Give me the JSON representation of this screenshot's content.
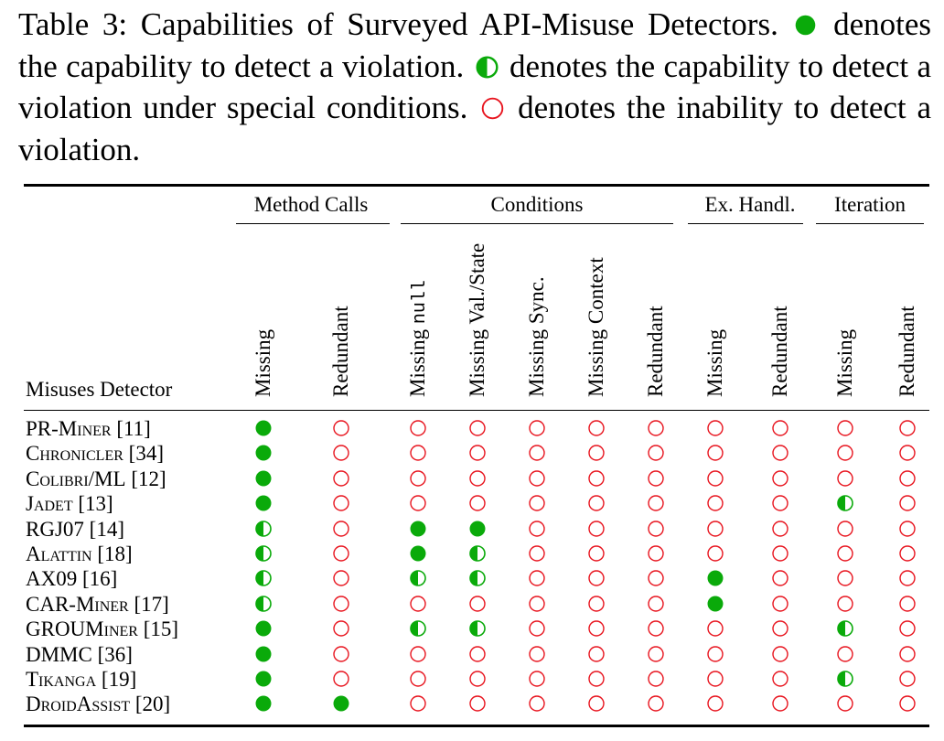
{
  "caption": {
    "prefix": "Table 3: Capabilities of Surveyed API-Misuse Detectors.",
    "full_desc": "denotes the capability to detect a violation.",
    "half_desc": "denotes the capability to detect a violation under special conditions.",
    "empty_desc": "denotes the inability to detect a violation."
  },
  "colors": {
    "full": "#0aaa0a",
    "empty_stroke": "#e8141e"
  },
  "header": {
    "detector_label": "Misuses Detector"
  },
  "groups": [
    {
      "label": "Method Calls"
    },
    {
      "label": "Conditions"
    },
    {
      "label": "Ex. Handl."
    },
    {
      "label": "Iteration"
    }
  ],
  "columns": [
    {
      "label": "Missing"
    },
    {
      "label": "Redundant"
    },
    {
      "label_prefix": "Missing ",
      "label_code": "null"
    },
    {
      "label": "Missing Val./State"
    },
    {
      "label": "Missing Sync."
    },
    {
      "label": "Missing Context"
    },
    {
      "label": "Redundant"
    },
    {
      "label": "Missing"
    },
    {
      "label": "Redundant"
    },
    {
      "label": "Missing"
    },
    {
      "label": "Redundant"
    }
  ],
  "rows": [
    {
      "name": "PR-Miner",
      "ref": "[11]",
      "cells": [
        "full",
        "empty",
        "empty",
        "empty",
        "empty",
        "empty",
        "empty",
        "empty",
        "empty",
        "empty",
        "empty"
      ]
    },
    {
      "name": "Chronicler",
      "ref": "[34]",
      "cells": [
        "full",
        "empty",
        "empty",
        "empty",
        "empty",
        "empty",
        "empty",
        "empty",
        "empty",
        "empty",
        "empty"
      ]
    },
    {
      "name": "Colibri/ML",
      "ref": "[12]",
      "cells": [
        "full",
        "empty",
        "empty",
        "empty",
        "empty",
        "empty",
        "empty",
        "empty",
        "empty",
        "empty",
        "empty"
      ]
    },
    {
      "name": "Jadet",
      "ref": "[13]",
      "cells": [
        "full",
        "empty",
        "empty",
        "empty",
        "empty",
        "empty",
        "empty",
        "empty",
        "empty",
        "half",
        "empty"
      ]
    },
    {
      "name": "RGJ07",
      "ref": "[14]",
      "cells": [
        "half",
        "empty",
        "full",
        "full",
        "empty",
        "empty",
        "empty",
        "empty",
        "empty",
        "empty",
        "empty"
      ]
    },
    {
      "name": "Alattin",
      "ref": "[18]",
      "cells": [
        "half",
        "empty",
        "full",
        "half",
        "empty",
        "empty",
        "empty",
        "empty",
        "empty",
        "empty",
        "empty"
      ]
    },
    {
      "name": "AX09",
      "ref": "[16]",
      "cells": [
        "half",
        "empty",
        "half",
        "half",
        "empty",
        "empty",
        "empty",
        "full",
        "empty",
        "empty",
        "empty"
      ]
    },
    {
      "name": "CAR-Miner",
      "ref": "[17]",
      "cells": [
        "half",
        "empty",
        "empty",
        "empty",
        "empty",
        "empty",
        "empty",
        "full",
        "empty",
        "empty",
        "empty"
      ]
    },
    {
      "name": "GROUMiner",
      "ref": "[15]",
      "cells": [
        "full",
        "empty",
        "half",
        "half",
        "empty",
        "empty",
        "empty",
        "empty",
        "empty",
        "half",
        "empty"
      ]
    },
    {
      "name": "DMMC",
      "ref": "[36]",
      "cells": [
        "full",
        "empty",
        "empty",
        "empty",
        "empty",
        "empty",
        "empty",
        "empty",
        "empty",
        "empty",
        "empty"
      ]
    },
    {
      "name": "Tikanga",
      "ref": "[19]",
      "cells": [
        "full",
        "empty",
        "empty",
        "empty",
        "empty",
        "empty",
        "empty",
        "empty",
        "empty",
        "half",
        "empty"
      ]
    },
    {
      "name": "DroidAssist",
      "ref": "[20]",
      "cells": [
        "full",
        "full",
        "empty",
        "empty",
        "empty",
        "empty",
        "empty",
        "empty",
        "empty",
        "empty",
        "empty"
      ]
    }
  ]
}
